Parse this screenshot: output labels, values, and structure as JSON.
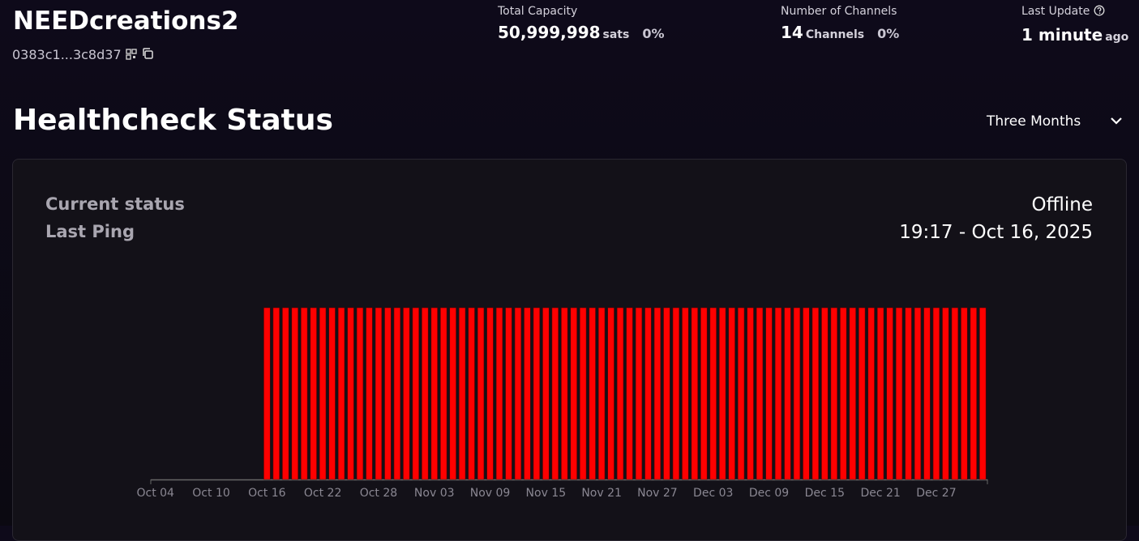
{
  "header": {
    "title": "NEEDcreations2",
    "pubkey": "0383c1...3c8d37",
    "stats": [
      {
        "label": "Total Capacity",
        "value": "50,999,998",
        "unit": "sats",
        "change": "0%"
      },
      {
        "label": "Number of Channels",
        "value": "14",
        "unit": "Channels",
        "change": "0%"
      },
      {
        "label": "Last Update",
        "value": "1 minute",
        "unit": "ago"
      }
    ]
  },
  "section": {
    "title": "Healthcheck Status",
    "range": "Three Months"
  },
  "status": {
    "rows": [
      {
        "label": "Current status",
        "value": "Offline"
      },
      {
        "label": "Last Ping",
        "value": "19:17 - Oct 16, 2025"
      }
    ]
  },
  "chart_data": {
    "type": "bar",
    "color": "#ff0000",
    "ylim": [
      0,
      1
    ],
    "categories": [
      "Oct 04",
      null,
      null,
      null,
      null,
      null,
      "Oct 10",
      null,
      null,
      null,
      null,
      null,
      "Oct 16",
      null,
      null,
      null,
      null,
      null,
      "Oct 22",
      null,
      null,
      null,
      null,
      null,
      "Oct 28",
      null,
      null,
      null,
      null,
      null,
      "Nov 03",
      null,
      null,
      null,
      null,
      null,
      "Nov 09",
      null,
      null,
      null,
      null,
      null,
      "Nov 15",
      null,
      null,
      null,
      null,
      null,
      "Nov 21",
      null,
      null,
      null,
      null,
      null,
      "Nov 27",
      null,
      null,
      null,
      null,
      null,
      "Dec 03",
      null,
      null,
      null,
      null,
      null,
      "Dec 09",
      null,
      null,
      null,
      null,
      null,
      "Dec 15",
      null,
      null,
      null,
      null,
      null,
      "Dec 21",
      null,
      null,
      null,
      null,
      null,
      "Dec 27",
      null,
      null,
      null,
      null,
      null
    ],
    "values": [
      null,
      null,
      null,
      null,
      null,
      null,
      null,
      null,
      null,
      null,
      null,
      null,
      1,
      1,
      1,
      1,
      1,
      1,
      1,
      1,
      1,
      1,
      1,
      1,
      1,
      1,
      1,
      1,
      1,
      1,
      1,
      1,
      1,
      1,
      1,
      1,
      1,
      1,
      1,
      1,
      1,
      1,
      1,
      1,
      1,
      1,
      1,
      1,
      1,
      1,
      1,
      1,
      1,
      1,
      1,
      1,
      1,
      1,
      1,
      1,
      1,
      1,
      1,
      1,
      1,
      1,
      1,
      1,
      1,
      1,
      1,
      1,
      1,
      1,
      1,
      1,
      1,
      1,
      1,
      1,
      1,
      1,
      1,
      1,
      1,
      1,
      1,
      1,
      1,
      1
    ]
  }
}
